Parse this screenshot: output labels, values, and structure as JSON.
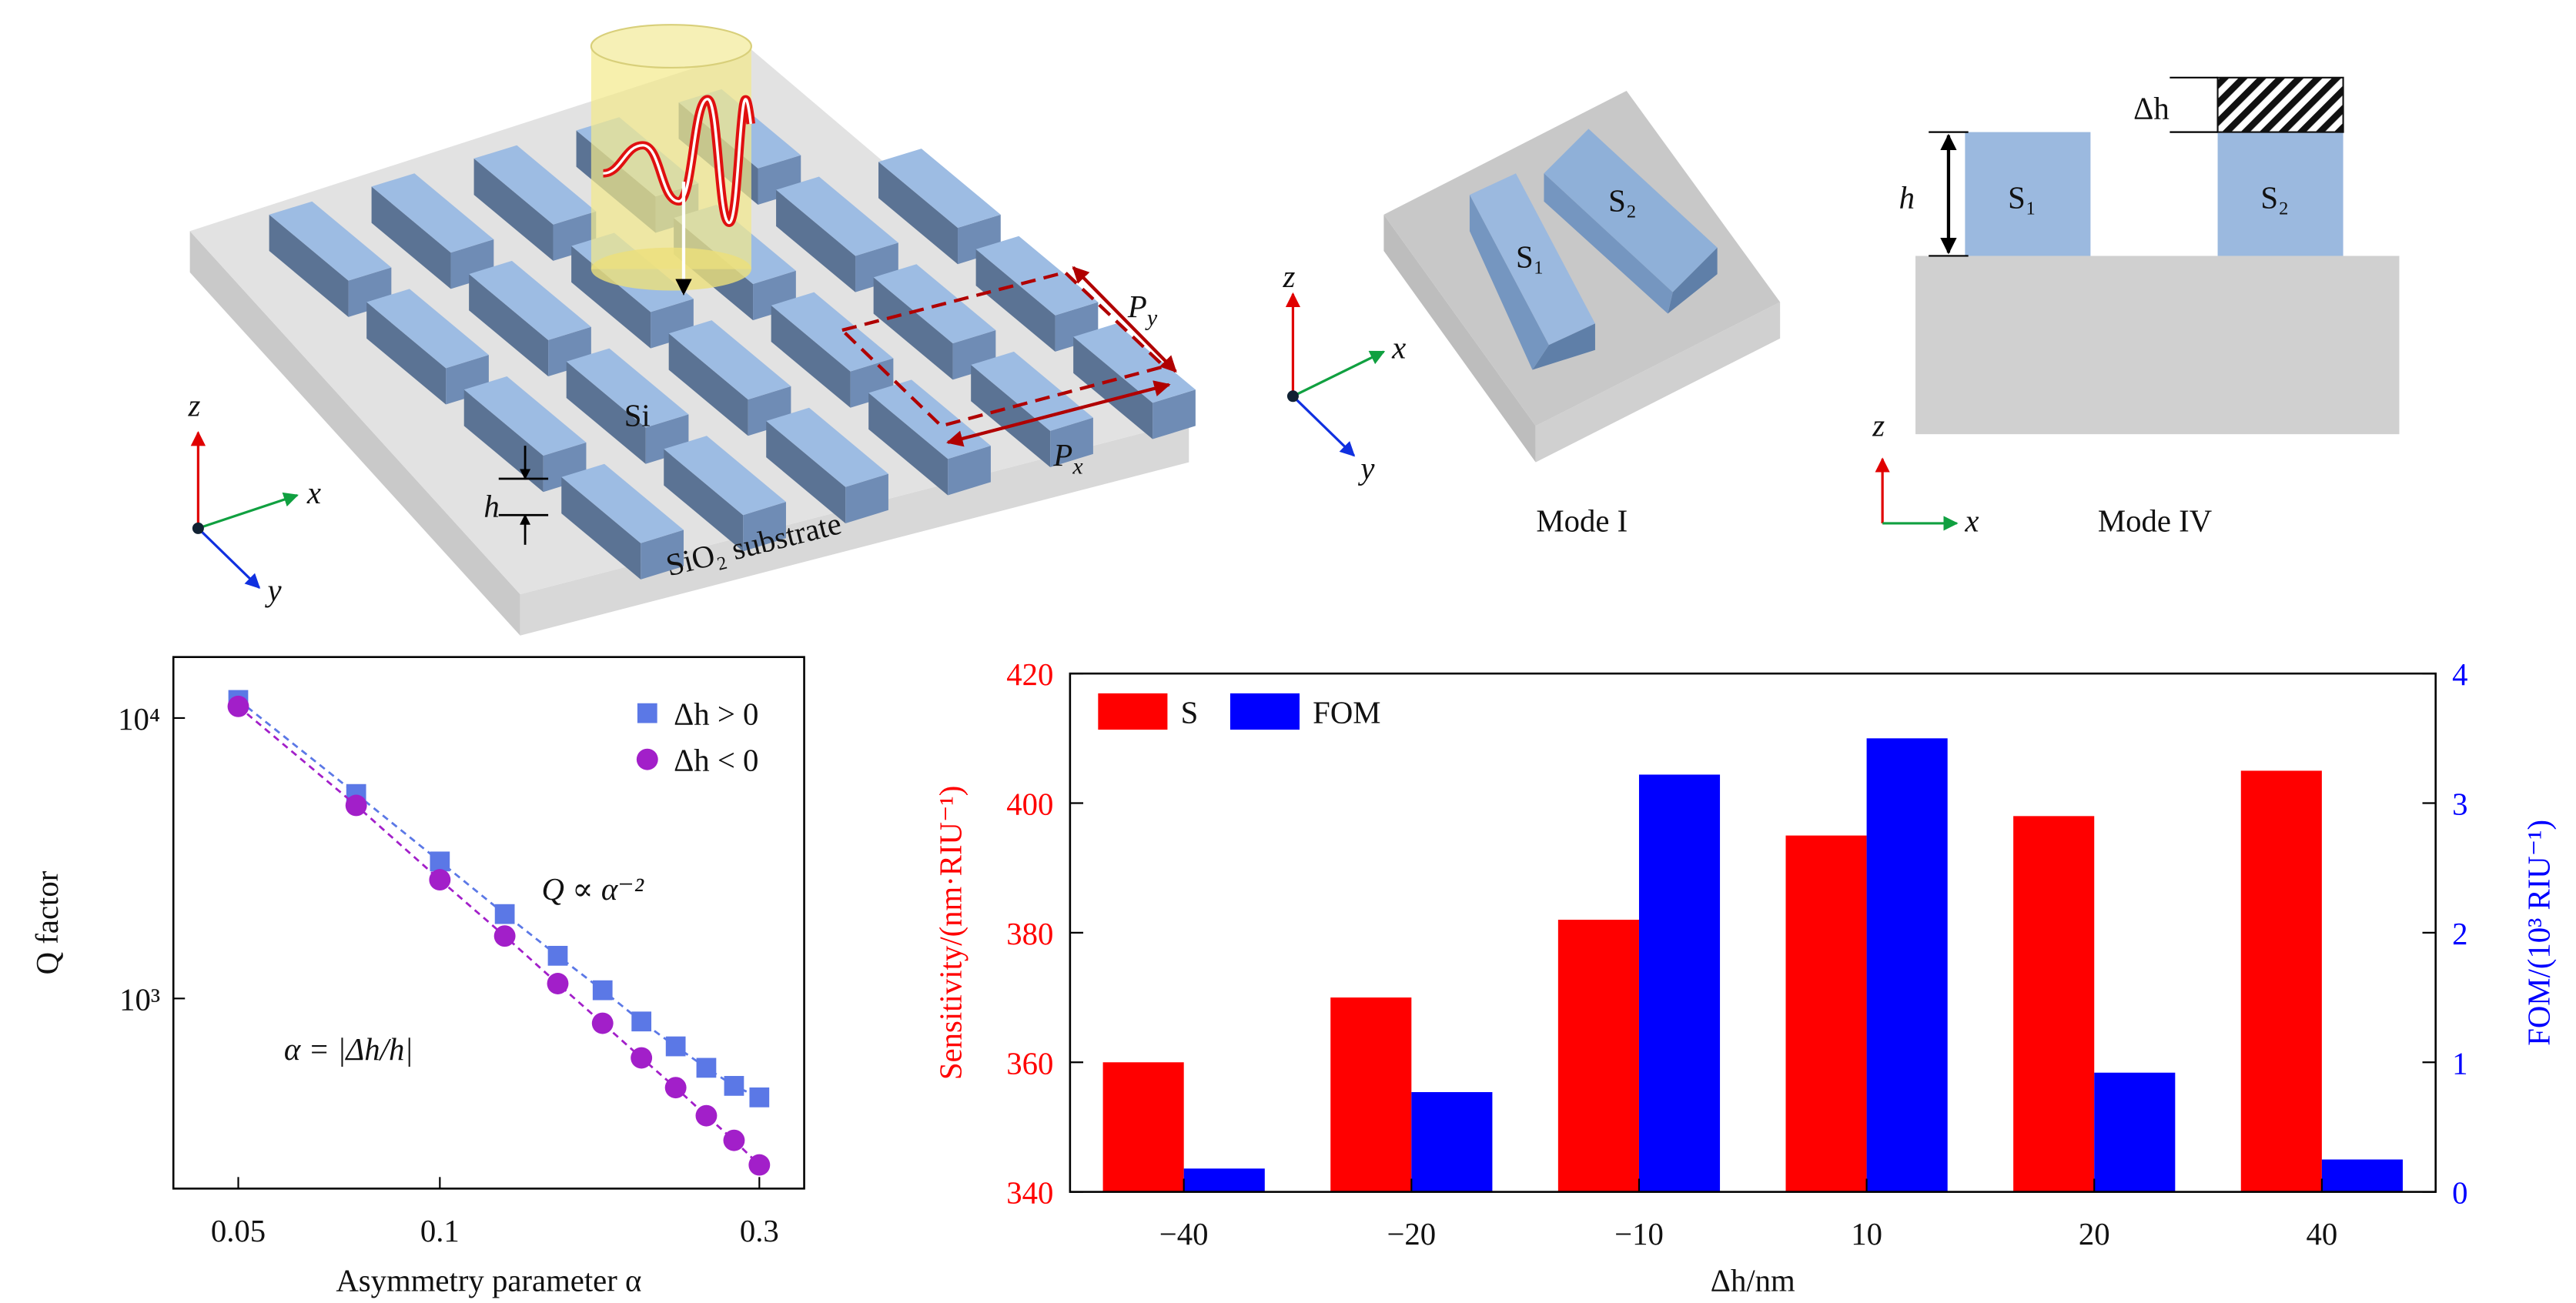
{
  "figure_a": {
    "material": "Si",
    "substrate": "SiO₂ substrate",
    "height": "h",
    "period_x": {
      "base": "P",
      "sub": "x"
    },
    "period_y": {
      "base": "P",
      "sub": "y"
    },
    "axes": {
      "z": "z",
      "x": "x",
      "y": "y"
    }
  },
  "figure_b": {
    "blocks": [
      "S₁",
      "S₂"
    ],
    "axes": {
      "z": "z",
      "x": "x",
      "y": "y"
    },
    "caption": "Mode I"
  },
  "figure_c": {
    "blocks": [
      "S₁",
      "S₂"
    ],
    "height": "h",
    "delta": "Δh",
    "axes": {
      "z": "z",
      "x": "x"
    },
    "caption": "Mode IV"
  },
  "chart_data": [
    {
      "type": "scatter",
      "x_label": "Asymmetry parameter α",
      "y_label": "Q factor",
      "xlog": true,
      "ylog": true,
      "xlim": [
        0.04,
        0.35
      ],
      "ylim": [
        210,
        16500
      ],
      "xticks": [
        0.05,
        0.1,
        0.3
      ],
      "yticks": [
        {
          "value": 1000,
          "label": "10³"
        },
        {
          "value": 10000,
          "label": "10⁴"
        }
      ],
      "x": [
        0.05,
        0.075,
        0.1,
        0.125,
        0.15,
        0.175,
        0.2,
        0.225,
        0.25,
        0.275,
        0.3
      ],
      "series": [
        {
          "name": "Δh > 0",
          "color": "#5b78e6",
          "marker": "square",
          "values": [
            11600,
            5360,
            3080,
            2000,
            1420,
            1070,
            828,
            675,
            566,
            488,
            444
          ]
        },
        {
          "name": "Δh < 0",
          "color": "#a21fc9",
          "marker": "circle",
          "values": [
            11000,
            4880,
            2650,
            1670,
            1130,
            816,
            614,
            481,
            382,
            312,
            255
          ]
        }
      ],
      "annotations": [
        "Q ∝ α⁻²",
        "α = |Δh/h|"
      ],
      "legend": "upper right"
    },
    {
      "type": "bar",
      "x_label": "Δh/nm",
      "y_label": "Sensitivity/(nm·RIU⁻¹)",
      "y2_label": "FOM/(10³ RIU⁻¹)",
      "categories": [
        "−40",
        "−20",
        "−10",
        "10",
        "20",
        "40"
      ],
      "ylim": [
        340,
        420
      ],
      "yticks": [
        340,
        360,
        380,
        400,
        420
      ],
      "y2lim": [
        0,
        4
      ],
      "y2ticks": [
        0,
        1,
        2,
        3,
        4
      ],
      "series": [
        {
          "name": "S",
          "color": "#ff0000",
          "values": [
            360,
            370,
            382,
            395,
            398,
            405
          ]
        },
        {
          "name": "FOM",
          "color": "#0000ff",
          "axis": "y2",
          "values": [
            0.18,
            0.77,
            3.22,
            3.5,
            0.92,
            0.25
          ]
        }
      ],
      "legend": "upper left"
    }
  ]
}
